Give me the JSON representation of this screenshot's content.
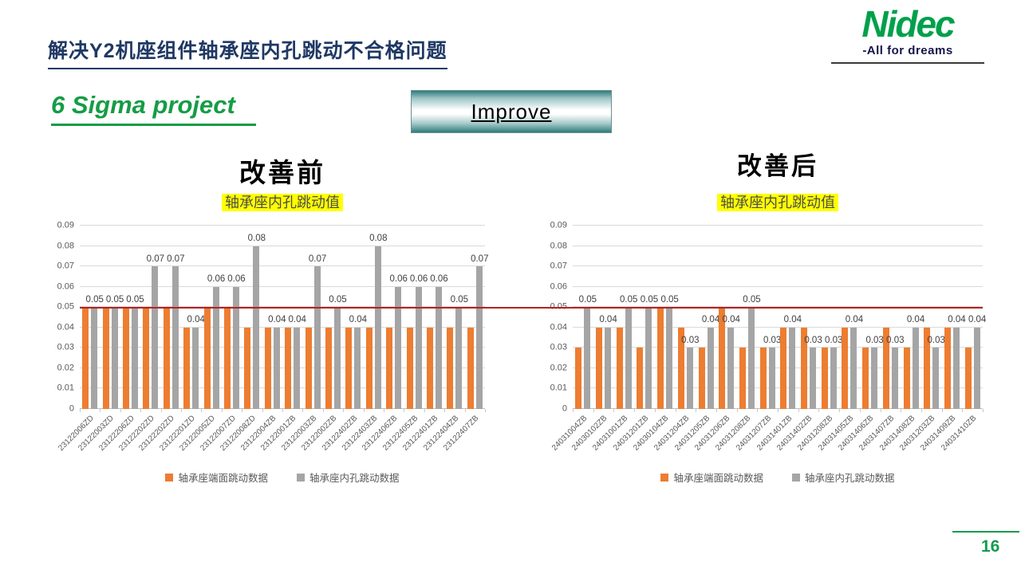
{
  "slide": {
    "title": "解决Y2机座组件轴承座内孔跳动不合格问题",
    "subtitle": "6 Sigma project",
    "stage_button": "Improve",
    "page_number": "16",
    "logo": {
      "brand": "Nidec",
      "tagline": "-All for dreams"
    }
  },
  "colors": {
    "title_navy": "#1F3864",
    "brand_green": "#00A04B",
    "accent_green": "#169C46",
    "series_face_orange": "#ED7D31",
    "series_bore_gray": "#A5A5A5",
    "ref_line_red": "#B22222",
    "gridline": "#D9D9D9",
    "axis_text": "#595959",
    "highlight_yellow": "#FFFF00"
  },
  "chart_data": [
    {
      "type": "bar",
      "header": "改善前",
      "title": "轴承座内孔跳动值",
      "ylim": [
        0,
        0.09
      ],
      "ytick_step": 0.01,
      "ref_line_y": 0.05,
      "grid": true,
      "legend_position": "bottom",
      "categories": [
        "23122006ZD",
        "23122003ZD",
        "23122206ZD",
        "23122202ZD",
        "23122202ZD",
        "23122201ZD",
        "23122005ZD",
        "23122007ZD",
        "23122008ZD",
        "23122004ZB",
        "23122001ZB",
        "23122003ZB",
        "23122002ZB",
        "23122402ZB",
        "23122403ZB",
        "23122406ZB",
        "23122405ZB",
        "23122401ZB",
        "23122404ZB",
        "23122407ZB"
      ],
      "series": [
        {
          "name": "轴承座端面跳动数据",
          "color": "#ED7D31",
          "data_labels": false,
          "values": [
            0.05,
            0.05,
            0.05,
            0.05,
            0.05,
            0.04,
            0.05,
            0.05,
            0.04,
            0.04,
            0.04,
            0.04,
            0.04,
            0.04,
            0.04,
            0.04,
            0.04,
            0.04,
            0.04,
            0.04
          ]
        },
        {
          "name": "轴承座内孔跳动数据",
          "color": "#A5A5A5",
          "data_labels": true,
          "values": [
            0.05,
            0.05,
            0.05,
            0.07,
            0.07,
            0.04,
            0.06,
            0.06,
            0.08,
            0.04,
            0.04,
            0.07,
            0.05,
            0.04,
            0.08,
            0.06,
            0.06,
            0.06,
            0.05,
            0.07
          ]
        }
      ]
    },
    {
      "type": "bar",
      "header": "改善后",
      "title": "轴承座内孔跳动值",
      "ylim": [
        0,
        0.09
      ],
      "ytick_step": 0.01,
      "ref_line_y": 0.05,
      "grid": true,
      "legend_position": "bottom",
      "categories": [
        "24031004ZB",
        "24030102ZB",
        "24031001ZB",
        "24031201ZB",
        "24030104ZB",
        "24031204ZB",
        "24031205ZB",
        "24031206ZB",
        "24031208ZB",
        "24031207ZB",
        "24031401ZB",
        "24031402ZB",
        "24031208ZB",
        "24031405ZB",
        "24031406ZB",
        "24031407ZB",
        "24031408ZB",
        "24031203ZB",
        "24031409ZB",
        "24031410ZB"
      ],
      "series": [
        {
          "name": "轴承座端面跳动数据",
          "color": "#ED7D31",
          "data_labels": false,
          "values": [
            0.03,
            0.04,
            0.04,
            0.03,
            0.05,
            0.04,
            0.03,
            0.05,
            0.03,
            0.03,
            0.04,
            0.04,
            0.03,
            0.04,
            0.03,
            0.04,
            0.03,
            0.04,
            0.04,
            0.03
          ]
        },
        {
          "name": "轴承座内孔跳动数据",
          "color": "#A5A5A5",
          "data_labels": true,
          "values": [
            0.05,
            0.04,
            0.05,
            0.05,
            0.05,
            0.03,
            0.04,
            0.04,
            0.05,
            0.03,
            0.04,
            0.03,
            0.03,
            0.04,
            0.03,
            0.03,
            0.04,
            0.03,
            0.04,
            0.04
          ]
        }
      ]
    }
  ]
}
